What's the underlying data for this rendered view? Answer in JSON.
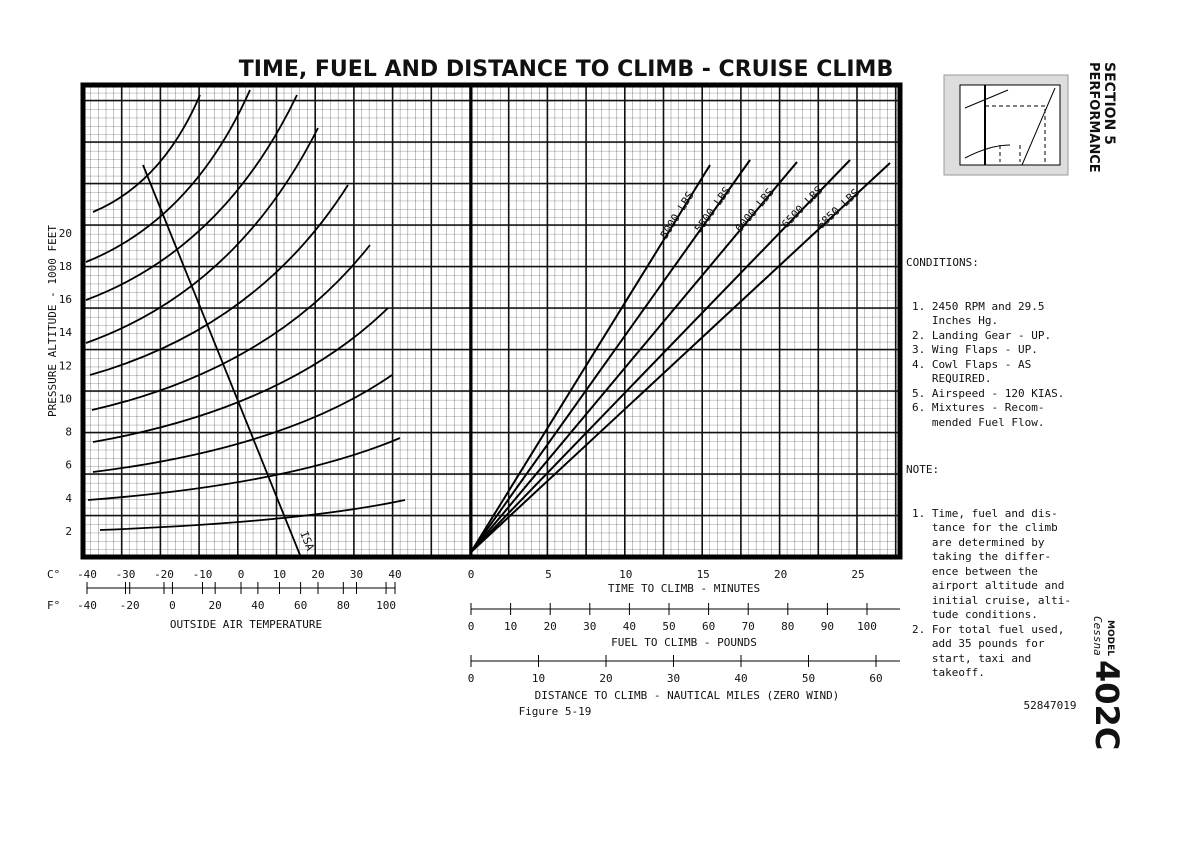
{
  "title": "TIME, FUEL AND DISTANCE TO CLIMB - CRUISE CLIMB",
  "section": {
    "number": "SECTION 5",
    "name": "PERFORMANCE"
  },
  "altitude": {
    "label": "PRESSURE ALTITUDE - 1000 FEET",
    "ticks": [
      2,
      4,
      6,
      8,
      10,
      12,
      14,
      16,
      18,
      20
    ]
  },
  "celsius": {
    "unit": "C°",
    "ticks": [
      -40,
      -30,
      -20,
      -10,
      0,
      10,
      20,
      30,
      40
    ]
  },
  "fahrenheit": {
    "unit": "F°",
    "ticks": [
      -40,
      -20,
      0,
      20,
      40,
      60,
      80,
      100
    ],
    "label": "OUTSIDE AIR TEMPERATURE"
  },
  "isa": "ISA",
  "time": {
    "ticks": [
      0,
      5,
      10,
      15,
      20,
      25
    ],
    "label": "TIME TO CLIMB - MINUTES"
  },
  "fuel": {
    "ticks": [
      0,
      10,
      20,
      30,
      40,
      50,
      60,
      70,
      80,
      90,
      100
    ],
    "label": "FUEL TO CLIMB - POUNDS"
  },
  "distance": {
    "ticks": [
      0,
      10,
      20,
      30,
      40,
      50,
      60
    ],
    "label": "DISTANCE TO CLIMB - NAUTICAL MILES (ZERO WIND)"
  },
  "weights": [
    "5000 LBS",
    "5500 LBS",
    "6000 LBS",
    "6500 LBS",
    "6850 LBS"
  ],
  "conditions": {
    "heading": "CONDITIONS:",
    "items": [
      "1. 2450 RPM and 29.5\n   Inches Hg.",
      "2. Landing Gear - UP.",
      "3. Wing Flaps - UP.",
      "4. Cowl Flaps - AS\n   REQUIRED.",
      "5. Airspeed - 120 KIAS.",
      "6. Mixtures - Recom-\n   mended Fuel Flow."
    ]
  },
  "note": {
    "heading": "NOTE:",
    "items": [
      "1. Time, fuel and dis-\n   tance for the climb\n   are determined by\n   taking the differ-\n   ence between the\n   airport altitude and\n   initial cruise, alti-\n   tude conditions.",
      "2. For total fuel used,\n   add 35 pounds for\n   start, taxi and\n   takeoff."
    ]
  },
  "figure": "Figure 5-19",
  "code": "52847019",
  "model": {
    "brand": "Cessna",
    "label": "MODEL",
    "number": "402C"
  }
}
